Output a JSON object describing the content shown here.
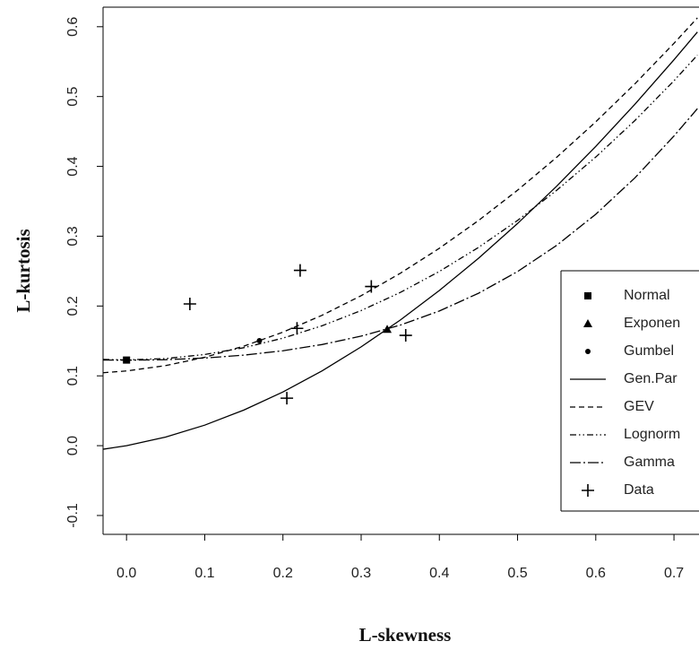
{
  "chart_data": {
    "type": "line",
    "xlabel": "L-skewness",
    "ylabel": "L-kurtosis",
    "xlim": [
      -0.03,
      0.732
    ],
    "ylim": [
      -0.127,
      0.628
    ],
    "xticks": [
      {
        "value": 0,
        "label": "0.0"
      },
      0.1,
      0.2,
      0.3,
      0.4,
      0.5,
      0.6,
      0.7
    ],
    "yticks": [
      -0.1,
      {
        "value": 0,
        "label": "0.0"
      },
      0.1,
      0.2,
      0.3,
      0.4,
      0.5,
      0.6
    ],
    "legend": "right",
    "series": [
      {
        "name": "Normal",
        "color": "#000000",
        "marker": "square",
        "x": [
          0
        ],
        "values": [
          0.1226
        ]
      },
      {
        "name": "Exponen",
        "color": "#000000",
        "marker": "triangle",
        "x": [
          0.3333
        ],
        "values": [
          0.1667
        ]
      },
      {
        "name": "Gumbel",
        "color": "#000000",
        "marker": "dot",
        "x": [
          0.1699
        ],
        "values": [
          0.1504
        ]
      },
      {
        "name": "Gen.Par",
        "color": "#000000",
        "line": "solid",
        "x": [
          -0.03,
          0,
          0.05,
          0.1,
          0.15,
          0.2,
          0.25,
          0.3,
          0.35,
          0.4,
          0.45,
          0.5,
          0.55,
          0.6,
          0.65,
          0.7,
          0.73
        ],
        "values": [
          -0.00513,
          0,
          0.01238,
          0.02941,
          0.05097,
          0.07692,
          0.10714,
          0.14151,
          0.17991,
          0.22222,
          0.26835,
          0.31818,
          0.37162,
          0.42857,
          0.48894,
          0.55263,
          0.59241
        ]
      },
      {
        "name": "GEV",
        "color": "#000000",
        "line": "dashed",
        "x": [
          -0.03,
          0,
          0.05,
          0.1,
          0.15,
          0.2,
          0.25,
          0.3,
          0.35,
          0.4,
          0.45,
          0.5,
          0.55,
          0.6,
          0.65,
          0.7,
          0.73
        ],
        "values": [
          0.10445,
          0.10701,
          0.11467,
          0.12652,
          0.14251,
          0.16259,
          0.18671,
          0.2148,
          0.24683,
          0.28271,
          0.3224,
          0.36585,
          0.41299,
          0.46378,
          0.51819,
          0.57619,
          0.61271
        ]
      },
      {
        "name": "Lognorm",
        "color": "#000000",
        "line": "dashdotdot",
        "x": [
          -0.03,
          0,
          0.05,
          0.1,
          0.15,
          0.2,
          0.25,
          0.3,
          0.35,
          0.4,
          0.45,
          0.5,
          0.55,
          0.6,
          0.65,
          0.7,
          0.73
        ],
        "values": [
          0.12352,
          0.12282,
          0.12476,
          0.13057,
          0.14032,
          0.15401,
          0.17172,
          0.19349,
          0.2194,
          0.24951,
          0.28389,
          0.3226,
          0.36573,
          0.41335,
          0.46559,
          0.52265,
          0.55931
        ]
      },
      {
        "name": "Gamma",
        "color": "#000000",
        "line": "longdashdot",
        "x": [
          -0.03,
          0,
          0.05,
          0.1,
          0.15,
          0.2,
          0.25,
          0.3,
          0.35,
          0.4,
          0.45,
          0.5,
          0.55,
          0.6,
          0.65,
          0.7,
          0.73
        ],
        "values": [
          0.12267,
          0.1224,
          0.12316,
          0.12551,
          0.12965,
          0.13594,
          0.14483,
          0.15686,
          0.17265,
          0.19288,
          0.21822,
          0.24935,
          0.28688,
          0.33142,
          0.38349,
          0.44355,
          0.48261
        ]
      },
      {
        "name": "Data",
        "color": "#000000",
        "marker": "plus",
        "x": [
          0.081,
          0.222,
          0.313,
          0.218,
          0.205,
          0.357
        ],
        "values": [
          0.203,
          0.251,
          0.228,
          0.168,
          0.068,
          0.158
        ]
      }
    ]
  }
}
